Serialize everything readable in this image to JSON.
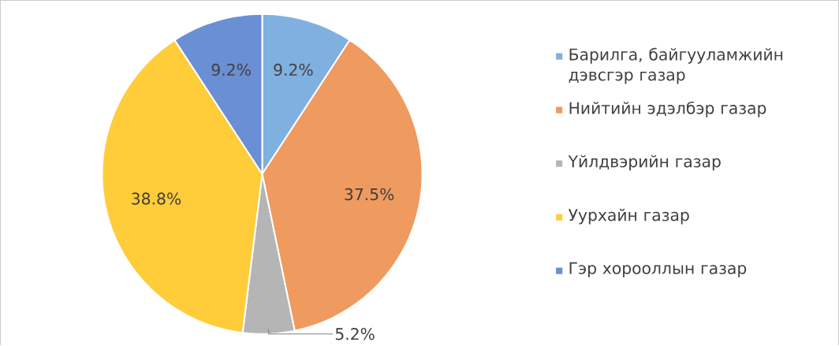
{
  "chart_data": {
    "type": "pie",
    "categories": [
      "Барилга, байгууламжийн дэвсгэр газар",
      "Нийтийн эдэлбэр газар",
      "Үйлдвэрийн газар",
      "Уурхайн газар",
      "Гэр хорооллын газар"
    ],
    "values": [
      9.2,
      37.5,
      5.2,
      38.8,
      9.2
    ],
    "colors": [
      "#7fb0e0",
      "#ef9a5f",
      "#b5b5b5",
      "#ffcc3a",
      "#6b8fd4"
    ],
    "value_labels": [
      "9.2%",
      "37.5%",
      "5.2%",
      "38.8%",
      "9.2%"
    ],
    "legend": "right"
  }
}
